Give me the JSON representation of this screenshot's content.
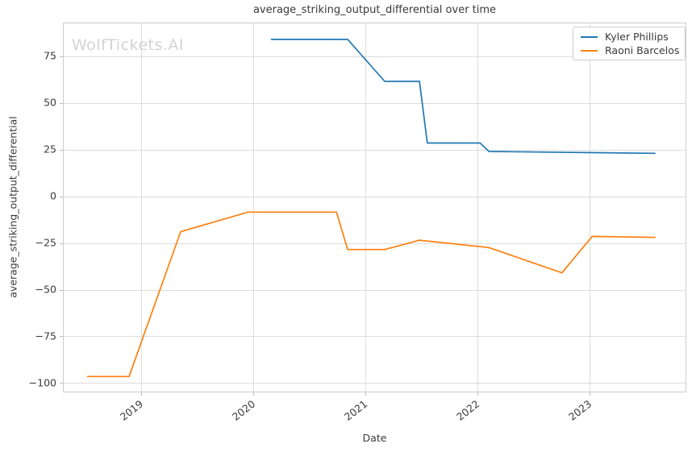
{
  "watermark": "WolfTickets.AI",
  "colors": {
    "background": "#ffffff",
    "grid": "#dcdcdc",
    "spine": "#cccccc",
    "tick": "#bbbbbb",
    "text": "#3a3a3a",
    "watermark": "#d3d3d3"
  },
  "chart_data": {
    "type": "line",
    "title": "average_striking_output_differential over time",
    "xlabel": "Date",
    "ylabel": "average_striking_output_differential",
    "xlim": [
      2018.3,
      2023.86
    ],
    "ylim": [
      -105,
      93
    ],
    "grid": true,
    "legend_position": "upper right",
    "x_ticks": [
      2019,
      2020,
      2021,
      2022,
      2023
    ],
    "x_tick_labels": [
      "2019",
      "2020",
      "2021",
      "2022",
      "2023"
    ],
    "y_ticks": [
      75,
      50,
      25,
      0,
      -25,
      -50,
      -75,
      -100
    ],
    "y_tick_labels": [
      "75",
      "50",
      "25",
      "0",
      "−25",
      "−50",
      "−75",
      "−100"
    ],
    "series": [
      {
        "name": "Kyler Phillips",
        "color": "#1f77b4",
        "x": [
          2020.16,
          2020.84,
          2021.17,
          2021.48,
          2021.55,
          2022.02,
          2022.1,
          2023.58
        ],
        "y": [
          84,
          84,
          61.5,
          61.5,
          28.5,
          28.5,
          24,
          23
        ]
      },
      {
        "name": "Raoni Barcelos",
        "color": "#ff7f0e",
        "x": [
          2018.52,
          2018.89,
          2019.35,
          2019.95,
          2020.74,
          2020.84,
          2021.17,
          2021.48,
          2022.1,
          2022.75,
          2023.02,
          2023.58
        ],
        "y": [
          -96.5,
          -96.5,
          -19,
          -8.5,
          -8.5,
          -28.5,
          -28.5,
          -23.5,
          -27.5,
          -41,
          -21.5,
          -22
        ]
      }
    ]
  }
}
